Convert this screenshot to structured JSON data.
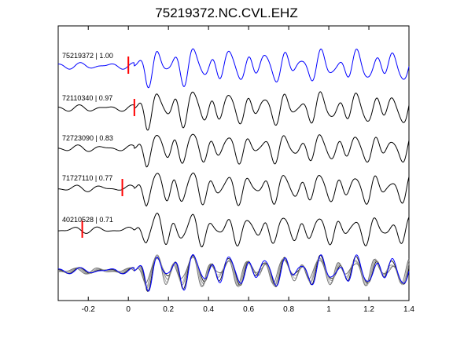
{
  "chart_data": {
    "type": "line",
    "title": "75219372.NC.CVL.EHZ",
    "xlabel": "",
    "ylabel": "",
    "xlim": [
      -0.35,
      1.4
    ],
    "x_ticks": [
      -0.2,
      0,
      0.2,
      0.4,
      0.6,
      0.8,
      1,
      1.2,
      1.4
    ],
    "x_tick_labels": [
      "-0.2",
      "0",
      "0.2",
      "0.4",
      "0.6",
      "0.8",
      "1",
      "1.2",
      "1.4"
    ],
    "grid": false,
    "legend": "none",
    "series": [
      {
        "name": "75219372 | 1.00",
        "color": "#0000ff",
        "pick_time": 0.0,
        "seed": 1,
        "amplitude": 1.0,
        "phase": 0.0
      },
      {
        "name": "72110340 | 0.97",
        "color": "#000000",
        "pick_time": 0.03,
        "seed": 2,
        "amplitude": 1.0,
        "phase": 0.15
      },
      {
        "name": "72723090 | 0.83",
        "color": "#000000",
        "pick_time": null,
        "seed": 3,
        "amplitude": 0.9,
        "phase": 0.35
      },
      {
        "name": "71727110 | 0.77",
        "color": "#000000",
        "pick_time": -0.03,
        "seed": 4,
        "amplitude": 0.95,
        "phase": 0.5
      },
      {
        "name": "40210528 | 0.71",
        "color": "#000000",
        "pick_time": -0.23,
        "seed": 5,
        "amplitude": 0.9,
        "phase": 0.7
      }
    ],
    "stack_colors": [
      "#0000ff",
      "#000000",
      "#808080",
      "#a0a0a0",
      "#606060"
    ],
    "pick_color": "#ff0000"
  }
}
